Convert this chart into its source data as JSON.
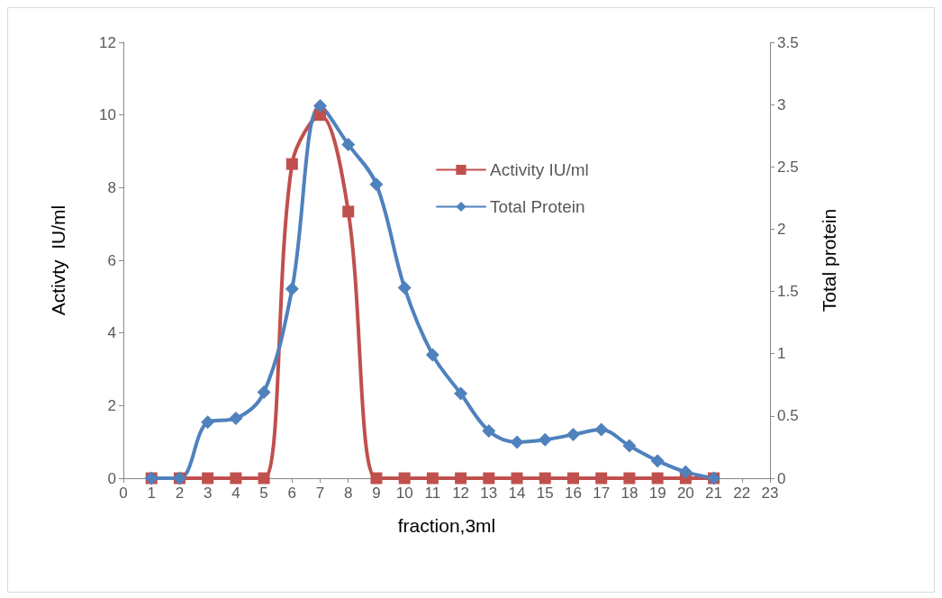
{
  "chart_data": {
    "type": "line",
    "xlabel": "fraction,3ml",
    "ylabel": "Activty  IU/ml",
    "y2label": "Total protein",
    "x": [
      1,
      2,
      3,
      4,
      5,
      6,
      7,
      8,
      9,
      10,
      11,
      12,
      13,
      14,
      15,
      16,
      17,
      18,
      19,
      20,
      21
    ],
    "xlim": [
      0,
      23
    ],
    "xticks": [
      0,
      1,
      2,
      3,
      4,
      5,
      6,
      7,
      8,
      9,
      10,
      11,
      12,
      13,
      14,
      15,
      16,
      17,
      18,
      19,
      20,
      21,
      22,
      23
    ],
    "ylim": [
      0,
      12
    ],
    "yticks": [
      0,
      2,
      4,
      6,
      8,
      10,
      12
    ],
    "y2lim": [
      0,
      3.5
    ],
    "y2ticks": [
      0,
      0.5,
      1,
      1.5,
      2,
      2.5,
      3,
      3.5
    ],
    "series": [
      {
        "name": "Activity IU/ml",
        "color": "#c0504d",
        "marker": "square",
        "values": [
          0,
          0,
          0,
          0,
          0,
          8.65,
          10.0,
          7.34,
          0,
          0,
          0,
          0,
          0,
          0,
          0,
          0,
          0,
          0,
          0,
          0,
          0
        ]
      },
      {
        "name": "Total Protein",
        "color": "#4f81bd",
        "marker": "diamond",
        "axis": "y2",
        "values": [
          0,
          0,
          0.45,
          0.48,
          0.69,
          1.52,
          2.99,
          2.68,
          2.36,
          1.53,
          0.99,
          0.68,
          0.38,
          0.29,
          0.31,
          0.35,
          0.39,
          0.26,
          0.14,
          0.05,
          0
        ]
      }
    ],
    "legend": "top right",
    "grid": false
  }
}
